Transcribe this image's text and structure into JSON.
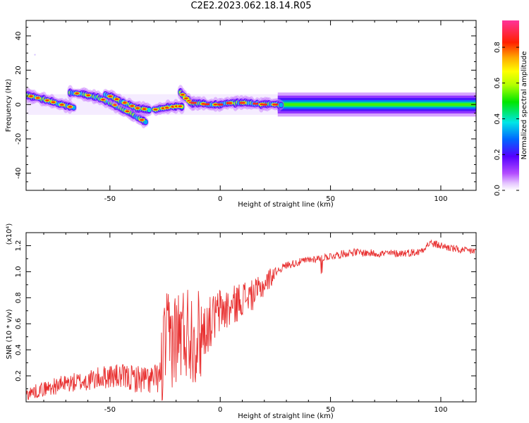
{
  "title": "C2E2.2023.062.18.14.R05",
  "colors": {
    "background": "#ffffff",
    "axis": "#000000",
    "snr_line": "#e83030",
    "ridge": "#ff2a1a"
  },
  "colorbar": {
    "label": "Normalized spectral amplitude",
    "range": [
      0,
      0.95
    ],
    "ticks": [
      "0.0",
      "0.2",
      "0.4",
      "0.6",
      "0.8"
    ],
    "tick_values": [
      0.0,
      0.2,
      0.4,
      0.6,
      0.8
    ],
    "colormap": "rainbow: white, magenta, purple, blue, cyan, green, yellow, orange, red, pink"
  },
  "chart_data": [
    {
      "type": "heatmap",
      "title": "C2E2.2023.062.18.14.R05",
      "xlabel": "Height of straight line (km)",
      "ylabel": "Frequency (Hz)",
      "xlim": [
        -88,
        116
      ],
      "ylim": [
        -50,
        49
      ],
      "xticks": [
        -50,
        0,
        50,
        100
      ],
      "xtick_labels": [
        "-50",
        "0",
        "50",
        "100"
      ],
      "yticks": [
        -40,
        -20,
        0,
        20,
        40
      ],
      "ytick_labels": [
        "-40",
        "-20",
        "0",
        "20",
        "40"
      ],
      "grid": false,
      "ridges": [
        {
          "name": "",
          "x": [
            -88,
            -80,
            -72,
            -66
          ],
          "y": [
            5.5,
            3,
            0,
            -2
          ]
        },
        {
          "name": "",
          "x": [
            -68,
            -62,
            -55,
            -48,
            -42,
            -38,
            -33
          ],
          "y": [
            7,
            6,
            4,
            0,
            -4,
            -7,
            -11
          ]
        },
        {
          "name": "",
          "x": [
            -52,
            -45,
            -38,
            -32
          ],
          "y": [
            6,
            2,
            -2,
            -3
          ]
        },
        {
          "name": "",
          "x": [
            -30,
            -25,
            -20,
            -17
          ],
          "y": [
            -3,
            -2,
            -1,
            -1
          ]
        },
        {
          "name": "",
          "x": [
            -18,
            -15,
            -12
          ],
          "y": [
            7,
            3,
            0
          ]
        },
        {
          "name": "",
          "x": [
            -12,
            -5,
            0,
            5,
            12,
            20,
            28
          ],
          "y": [
            1,
            0,
            0,
            1,
            1,
            0,
            0
          ]
        },
        {
          "name": "",
          "x": [
            28,
            50,
            80,
            116
          ],
          "y": [
            0,
            0,
            0,
            0
          ]
        }
      ],
      "isolated_points": [
        {
          "x": -84,
          "y": 29
        }
      ]
    },
    {
      "type": "line",
      "xlabel": "Height of straight line (km)",
      "ylabel": "SNR (10 * v/v)",
      "y_multiplier": "(x10⁴)",
      "xlim": [
        -88,
        116
      ],
      "ylim": [
        0,
        1.3
      ],
      "xticks": [
        -50,
        0,
        50,
        100
      ],
      "xtick_labels": [
        "-50",
        "0",
        "50",
        "100"
      ],
      "yticks": [
        0.2,
        0.4,
        0.6,
        0.8,
        1.0,
        1.2
      ],
      "ytick_labels": [
        "0.2",
        "0.4",
        "0.6",
        "0.8",
        "1.0",
        "1.2"
      ],
      "grid": false,
      "series": [
        {
          "name": "",
          "x": [
            -88,
            -80,
            -70,
            -60,
            -50,
            -40,
            -30,
            -27,
            -25,
            -20,
            -15,
            -10,
            -5,
            0,
            5,
            10,
            15,
            20,
            25,
            30,
            40,
            50,
            60,
            70,
            80,
            90,
            95,
            100,
            110,
            116
          ],
          "y": [
            0.06,
            0.1,
            0.14,
            0.16,
            0.2,
            0.18,
            0.17,
            0.2,
            0.45,
            0.5,
            0.55,
            0.5,
            0.6,
            0.7,
            0.72,
            0.8,
            0.82,
            0.9,
            1.0,
            1.05,
            1.09,
            1.12,
            1.15,
            1.14,
            1.14,
            1.15,
            1.22,
            1.2,
            1.16,
            1.16
          ]
        }
      ]
    }
  ]
}
